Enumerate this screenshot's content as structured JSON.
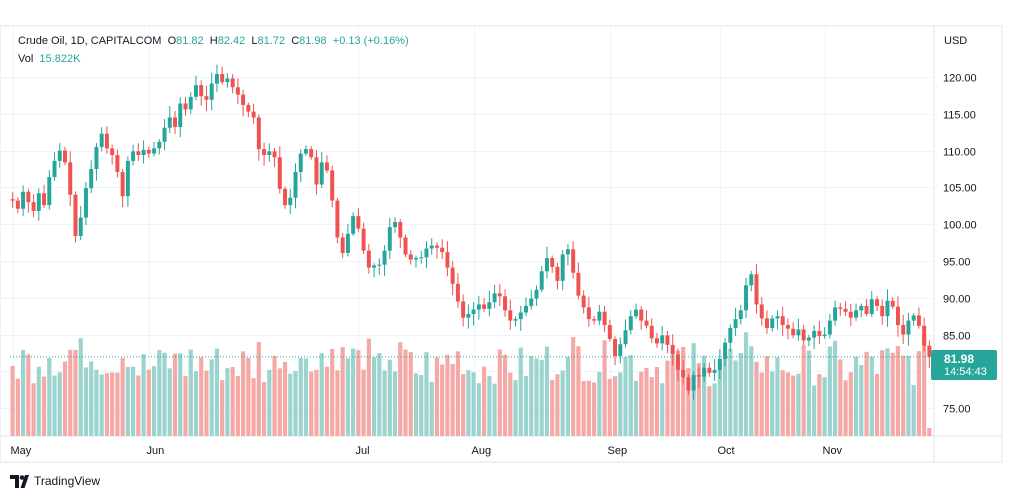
{
  "header": {
    "symbol": "Crude Oil, 1D, CAPITALCOM",
    "o_label": "O",
    "o_value": "81.82",
    "h_label": "H",
    "h_value": "82.42",
    "l_label": "L",
    "l_value": "81.72",
    "c_label": "C",
    "c_value": "81.98",
    "change": "+0.13 (+0.16%)",
    "vol_label": "Vol",
    "vol_value": "15.822K"
  },
  "currency": "USD",
  "last_price": {
    "price": "81.98",
    "countdown": "14:54:43"
  },
  "brand": {
    "name": "TradingView"
  },
  "colors": {
    "up": "#26a69a",
    "down": "#ef5350",
    "up_vol": "#9bd4ce",
    "down_vol": "#f4a9a7",
    "grid": "#f0f3fa",
    "axis_text": "#131722"
  },
  "chart_data": {
    "type": "candlestick",
    "ylim": [
      71,
      124
    ],
    "y_ticks": [
      "75.00",
      "80.00",
      "85.00",
      "90.00",
      "95.00",
      "100.00",
      "105.00",
      "110.00",
      "115.00",
      "120.00"
    ],
    "x_ticks": [
      "May",
      "Jun",
      "Jul",
      "Aug",
      "Sep",
      "Oct",
      "Nov"
    ],
    "grid": true,
    "series": [
      {
        "name": "Crude Oil",
        "closes": [
          103.2,
          102.1,
          104.4,
          103.0,
          101.8,
          104.2,
          102.6,
          106.4,
          108.6,
          110.0,
          108.4,
          104.0,
          98.4,
          100.9,
          104.9,
          107.5,
          110.5,
          112.3,
          110.3,
          109.4,
          107.1,
          103.8,
          108.6,
          109.9,
          109.4,
          110.1,
          109.6,
          110.3,
          111.2,
          113.1,
          114.5,
          113.2,
          116.4,
          115.6,
          117.3,
          118.9,
          117.4,
          116.9,
          119.1,
          120.4,
          119.3,
          119.8,
          118.6,
          117.6,
          116.2,
          115.3,
          114.5,
          110.2,
          109.4,
          109.9,
          109.1,
          104.8,
          102.6,
          103.6,
          107.1,
          109.6,
          110.2,
          109.1,
          105.4,
          108.4,
          107.3,
          103.2,
          98.2,
          96.1,
          98.7,
          101.1,
          99.4,
          96.4,
          94.1,
          94.4,
          94.5,
          96.4,
          99.6,
          100.3,
          98.2,
          95.9,
          95.2,
          95.4,
          95.5,
          96.7,
          97.1,
          96.8,
          96.2,
          94.1,
          91.9,
          89.5,
          87.3,
          87.8,
          88.4,
          89.1,
          88.5,
          89.4,
          90.6,
          90.2,
          88.3,
          86.9,
          87.1,
          88.0,
          88.9,
          89.9,
          91.1,
          93.6,
          95.4,
          94.2,
          92.3,
          95.9,
          96.6,
          93.4,
          90.3,
          88.7,
          87.1,
          86.9,
          88.1,
          86.3,
          84.4,
          82.1,
          83.7,
          85.6,
          87.5,
          88.4,
          86.9,
          86.2,
          84.5,
          83.8,
          84.9,
          83.6,
          82.3,
          80.2,
          79.2,
          77.4,
          79.5,
          79.3,
          80.5,
          79.8,
          80.2,
          81.7,
          83.9,
          85.9,
          87.1,
          88.3,
          91.7,
          93.2,
          89.1,
          87.2,
          85.9,
          87.2,
          87.5,
          86.3,
          85.8,
          84.9,
          85.7,
          84.2,
          84.6,
          85.5,
          84.8,
          85.0,
          86.9,
          88.7,
          88.5,
          88.1,
          87.3,
          88.3,
          88.9,
          87.8,
          89.8,
          88.9,
          87.5,
          89.6,
          88.8,
          86.3,
          85.0,
          86.9,
          87.6,
          86.2,
          83.5,
          81.98
        ]
      }
    ]
  }
}
